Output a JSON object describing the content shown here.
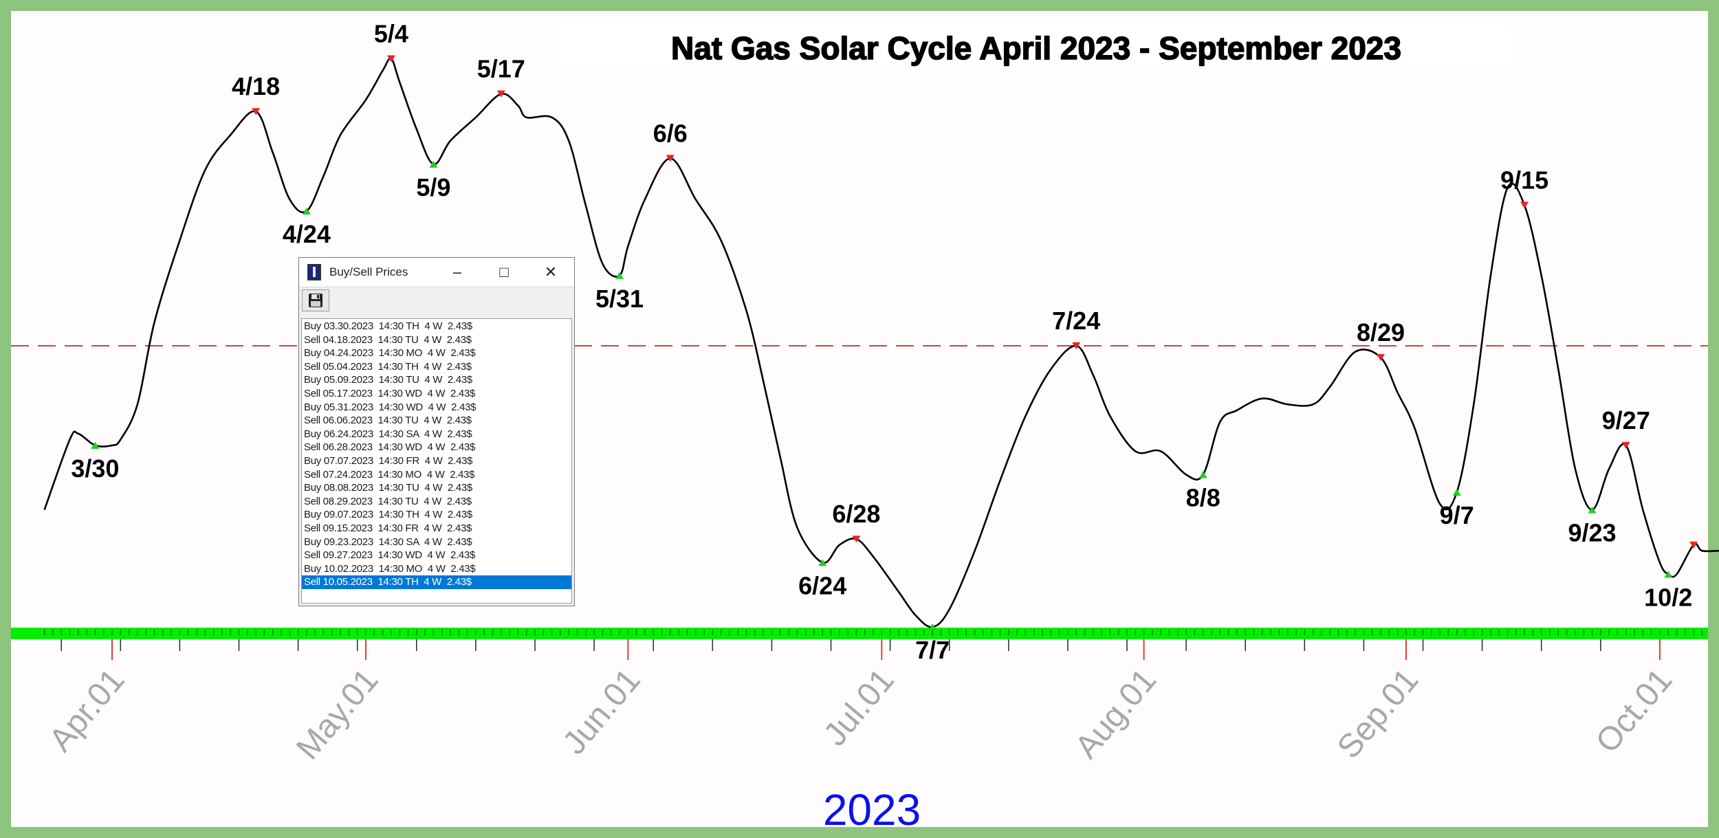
{
  "chart_data": {
    "type": "line",
    "title": "Nat Gas Solar Cycle April 2023 - September 2023",
    "year_label": "2023",
    "x_tick_labels": [
      "Apr.01",
      "May.01",
      "Jun.01",
      "Jul.01",
      "Aug.01",
      "Sep.01",
      "Oct.01"
    ],
    "x_tick_dates": [
      "2023-04-01",
      "2023-05-01",
      "2023-06-01",
      "2023-07-01",
      "2023-08-01",
      "2023-09-01",
      "2023-10-01"
    ],
    "x_range": [
      "2023-03-24",
      "2023-10-08"
    ],
    "y_range": [
      0,
      1
    ],
    "reference_line": {
      "value": 0.48,
      "style": "dashed",
      "color": "#e03a3a"
    },
    "grid": false,
    "line_color": "#000000",
    "buy_color": "#22cc22",
    "sell_color": "#ee2222",
    "axis_bar_color": "#00ee00",
    "series": [
      {
        "x": [
          "2023-03-24",
          "2023-03-27",
          "2023-03-28",
          "2023-03-30",
          "2023-04-01",
          "2023-04-02",
          "2023-04-04",
          "2023-04-06",
          "2023-04-09",
          "2023-04-12",
          "2023-04-15",
          "2023-04-18",
          "2023-04-20",
          "2023-04-22",
          "2023-04-24",
          "2023-04-26",
          "2023-04-28",
          "2023-05-01",
          "2023-05-03",
          "2023-05-04",
          "2023-05-05",
          "2023-05-07",
          "2023-05-09",
          "2023-05-11",
          "2023-05-14",
          "2023-05-17",
          "2023-05-19",
          "2023-05-20",
          "2023-05-23",
          "2023-05-25",
          "2023-05-27",
          "2023-05-29",
          "2023-05-31",
          "2023-06-01",
          "2023-06-03",
          "2023-06-06",
          "2023-06-09",
          "2023-06-12",
          "2023-06-15",
          "2023-06-17",
          "2023-06-19",
          "2023-06-21",
          "2023-06-24",
          "2023-06-26",
          "2023-06-28",
          "2023-06-30",
          "2023-07-03",
          "2023-07-05",
          "2023-07-07",
          "2023-07-09",
          "2023-07-12",
          "2023-07-15",
          "2023-07-18",
          "2023-07-21",
          "2023-07-24",
          "2023-07-26",
          "2023-07-28",
          "2023-07-31",
          "2023-08-03",
          "2023-08-06",
          "2023-08-08",
          "2023-08-10",
          "2023-08-12",
          "2023-08-15",
          "2023-08-18",
          "2023-08-21",
          "2023-08-23",
          "2023-08-26",
          "2023-08-29",
          "2023-08-31",
          "2023-09-02",
          "2023-09-05",
          "2023-09-07",
          "2023-09-09",
          "2023-09-11",
          "2023-09-13",
          "2023-09-15",
          "2023-09-17",
          "2023-09-19",
          "2023-09-21",
          "2023-09-23",
          "2023-09-25",
          "2023-09-27",
          "2023-09-29",
          "2023-10-01",
          "2023-10-02",
          "2023-10-03",
          "2023-10-05",
          "2023-10-06",
          "2023-10-08"
        ],
        "y": [
          0.2,
          0.32,
          0.33,
          0.31,
          0.31,
          0.32,
          0.38,
          0.52,
          0.66,
          0.78,
          0.84,
          0.88,
          0.81,
          0.73,
          0.71,
          0.77,
          0.84,
          0.9,
          0.95,
          0.97,
          0.93,
          0.85,
          0.79,
          0.83,
          0.87,
          0.91,
          0.89,
          0.87,
          0.87,
          0.83,
          0.72,
          0.62,
          0.6,
          0.65,
          0.73,
          0.8,
          0.73,
          0.66,
          0.54,
          0.42,
          0.29,
          0.17,
          0.11,
          0.14,
          0.15,
          0.12,
          0.06,
          0.02,
          0.0,
          0.03,
          0.13,
          0.25,
          0.36,
          0.44,
          0.48,
          0.43,
          0.36,
          0.3,
          0.3,
          0.26,
          0.26,
          0.35,
          0.37,
          0.39,
          0.38,
          0.38,
          0.41,
          0.47,
          0.46,
          0.4,
          0.34,
          0.21,
          0.23,
          0.38,
          0.6,
          0.75,
          0.72,
          0.6,
          0.44,
          0.27,
          0.2,
          0.27,
          0.31,
          0.2,
          0.11,
          0.09,
          0.09,
          0.14,
          0.13,
          0.13
        ]
      }
    ],
    "turning_points": [
      {
        "label": "3/30",
        "date": "2023-03-30",
        "value": 0.31,
        "type": "buy"
      },
      {
        "label": "4/18",
        "date": "2023-04-18",
        "value": 0.88,
        "type": "sell"
      },
      {
        "label": "4/24",
        "date": "2023-04-24",
        "value": 0.71,
        "type": "buy"
      },
      {
        "label": "5/4",
        "date": "2023-05-04",
        "value": 0.97,
        "type": "sell"
      },
      {
        "label": "5/9",
        "date": "2023-05-09",
        "value": 0.79,
        "type": "buy"
      },
      {
        "label": "5/17",
        "date": "2023-05-17",
        "value": 0.91,
        "type": "sell"
      },
      {
        "label": "5/31",
        "date": "2023-05-31",
        "value": 0.6,
        "type": "buy"
      },
      {
        "label": "6/6",
        "date": "2023-06-06",
        "value": 0.8,
        "type": "sell"
      },
      {
        "label": "6/24",
        "date": "2023-06-24",
        "value": 0.11,
        "type": "buy"
      },
      {
        "label": "6/28",
        "date": "2023-06-28",
        "value": 0.15,
        "type": "sell"
      },
      {
        "label": "7/7",
        "date": "2023-07-07",
        "value": 0.0,
        "type": "buy"
      },
      {
        "label": "7/24",
        "date": "2023-07-24",
        "value": 0.48,
        "type": "sell"
      },
      {
        "label": "8/8",
        "date": "2023-08-08",
        "value": 0.26,
        "type": "buy"
      },
      {
        "label": "8/29",
        "date": "2023-08-29",
        "value": 0.46,
        "type": "sell"
      },
      {
        "label": "9/7",
        "date": "2023-09-07",
        "value": 0.23,
        "type": "buy"
      },
      {
        "label": "9/15",
        "date": "2023-09-15",
        "value": 0.72,
        "type": "sell"
      },
      {
        "label": "9/23",
        "date": "2023-09-23",
        "value": 0.2,
        "type": "buy"
      },
      {
        "label": "9/27",
        "date": "2023-09-27",
        "value": 0.31,
        "type": "sell"
      },
      {
        "label": "10/2",
        "date": "2023-10-02",
        "value": 0.09,
        "type": "buy"
      },
      {
        "label": "",
        "date": "2023-10-05",
        "value": 0.14,
        "type": "sell"
      }
    ]
  },
  "popup": {
    "title": "Buy/Sell Prices",
    "minimize": "–",
    "maximize": "□",
    "close": "✕",
    "save_icon": "floppy-disk-icon",
    "selected_index": 19,
    "rows": [
      "Buy 03.30.2023  14:30 TH  4 W  2.43$",
      "Sell 04.18.2023  14:30 TU  4 W  2.43$",
      "Buy 04.24.2023  14:30 MO  4 W  2.43$",
      "Sell 05.04.2023  14:30 TH  4 W  2.43$",
      "Buy 05.09.2023  14:30 TU  4 W  2.43$",
      "Sell 05.17.2023  14:30 WD  4 W  2.43$",
      "Buy 05.31.2023  14:30 WD  4 W  2.43$",
      "Sell 06.06.2023  14:30 TU  4 W  2.43$",
      "Buy 06.24.2023  14:30 SA  4 W  2.43$",
      "Sell 06.28.2023  14:30 WD  4 W  2.43$",
      "Buy 07.07.2023  14:30 FR  4 W  2.43$",
      "Sell 07.24.2023  14:30 MO  4 W  2.43$",
      "Buy 08.08.2023  14:30 TU  4 W  2.43$",
      "Sell 08.29.2023  14:30 TU  4 W  2.43$",
      "Buy 09.07.2023  14:30 TH  4 W  2.43$",
      "Sell 09.15.2023  14:30 FR  4 W  2.43$",
      "Buy 09.23.2023  14:30 SA  4 W  2.43$",
      "Sell 09.27.2023  14:30 WD  4 W  2.43$",
      "Buy 10.02.2023  14:30 MO  4 W  2.43$",
      "Sell 10.05.2023  14:30 TH  4 W  2.43$"
    ]
  }
}
